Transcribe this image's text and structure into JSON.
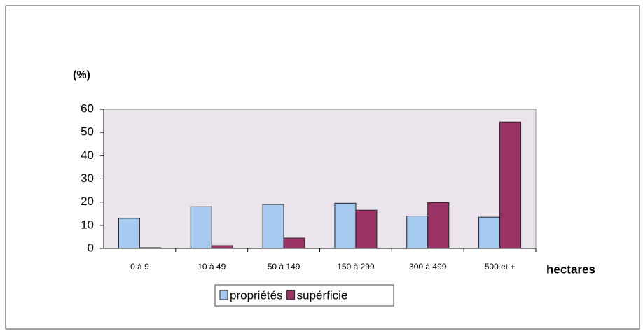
{
  "chart_data": {
    "type": "bar",
    "y_label": "(%)",
    "x_label": "hectares",
    "categories": [
      "0 à 9",
      "10 à 49",
      "50 à 149",
      "150 à 299",
      "300 à 499",
      "500 et +"
    ],
    "series": [
      {
        "name": "propriétés",
        "color": "#a6caf0",
        "values": [
          13,
          18,
          19,
          19.5,
          14,
          13.5
        ]
      },
      {
        "name": "supérficie",
        "color": "#993366",
        "values": [
          0.3,
          1.2,
          4.5,
          16.5,
          19.8,
          54.5
        ]
      }
    ],
    "ylim": [
      0,
      60
    ],
    "yticks": [
      0,
      10,
      20,
      30,
      40,
      50,
      60
    ],
    "grid": false,
    "legend": "bottom"
  }
}
